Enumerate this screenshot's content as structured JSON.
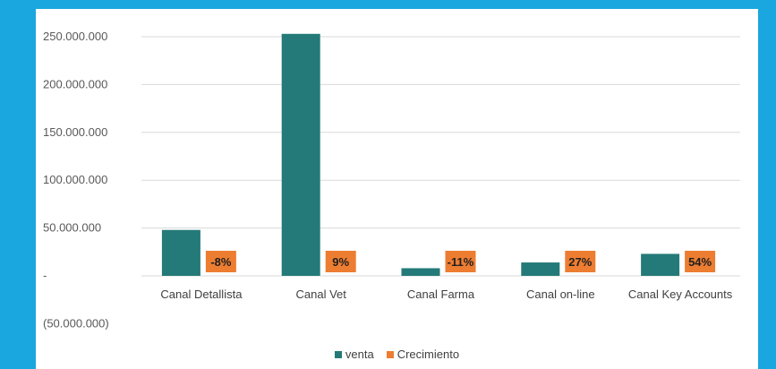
{
  "chart_data": {
    "type": "bar",
    "categories": [
      "Canal Detallista",
      "Canal Vet",
      "Canal Farma",
      "Canal on-line",
      "Canal Key Accounts"
    ],
    "series": [
      {
        "name": "venta",
        "color": "#247a78",
        "values": [
          48000000,
          253000000,
          8000000,
          14000000,
          23000000
        ]
      },
      {
        "name": "Crecimiento",
        "color": "#ed7d31",
        "labels": [
          "-8%",
          "9%",
          "-11%",
          "27%",
          "54%"
        ]
      }
    ],
    "y_ticks": [
      250000000,
      200000000,
      150000000,
      100000000,
      50000000,
      0,
      -50000000
    ],
    "y_tick_labels": [
      "250.000.000",
      "200.000.000",
      "150.000.000",
      "100.000.000",
      "50.000.000",
      "-",
      "(50.000.000)"
    ],
    "ylim": [
      -50000000,
      250000000
    ],
    "grid": true,
    "legend_position": "bottom"
  }
}
